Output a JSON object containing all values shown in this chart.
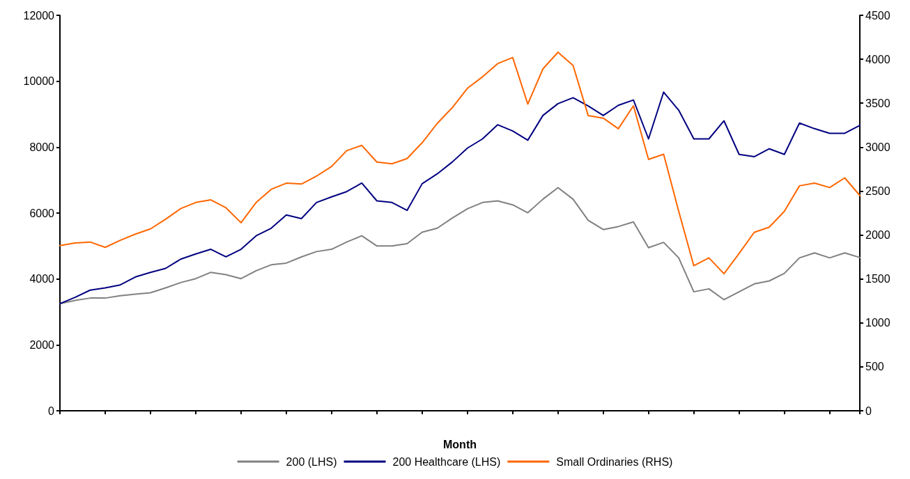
{
  "chart_data": {
    "type": "line",
    "xlabel": "Month",
    "categories": [
      null,
      null,
      null,
      null,
      null,
      null,
      null,
      null,
      null,
      null,
      null,
      null,
      null,
      null,
      null,
      null,
      null,
      null,
      null,
      null,
      null,
      null,
      null,
      null,
      null,
      null,
      null,
      null,
      null,
      null,
      null,
      null,
      null,
      null,
      null,
      null,
      null,
      null,
      null,
      null,
      null,
      null,
      null,
      null,
      null,
      null,
      null,
      null,
      null,
      null,
      null,
      null,
      null,
      null
    ],
    "series": [
      {
        "name": "200 (LHS)",
        "color": "#808080",
        "values": [
          3250,
          3350,
          3420,
          3420,
          3490,
          3540,
          3580,
          3730,
          3890,
          4010,
          4200,
          4130,
          4010,
          4250,
          4430,
          4480,
          4670,
          4830,
          4900,
          5120,
          5310,
          5000,
          5000,
          5070,
          5420,
          5540,
          5850,
          6130,
          6320,
          6370,
          6250,
          6010,
          6420,
          6770,
          6420,
          5780,
          5500,
          5590,
          5730,
          4950,
          5110,
          4640,
          3610,
          3700,
          3370,
          3610,
          3850,
          3940,
          4170,
          4640,
          4790,
          4640,
          4790,
          4650
        ]
      },
      {
        "name": "200 Healthcare (LHS)",
        "color": "#000080",
        "values": [
          3250,
          3440,
          3660,
          3730,
          3820,
          4060,
          4200,
          4320,
          4600,
          4760,
          4900,
          4670,
          4900,
          5310,
          5540,
          5940,
          5830,
          6320,
          6490,
          6650,
          6910,
          6370,
          6320,
          6080,
          6890,
          7190,
          7550,
          7970,
          8250,
          8680,
          8490,
          8210,
          8960,
          9320,
          9500,
          9250,
          8960,
          9270,
          9430,
          8250,
          9670,
          9120,
          8250,
          8250,
          8800,
          7780,
          7710,
          7950,
          7780,
          8730,
          8560,
          8420,
          8420,
          8660
        ]
      },
      {
        "name": "Small Ordinaries (RHS)",
        "color": "#ff6600",
        "axis": "y2",
        "values": [
          1880,
          1910,
          1920,
          1860,
          1940,
          2010,
          2070,
          2180,
          2300,
          2370,
          2400,
          2310,
          2140,
          2370,
          2520,
          2590,
          2580,
          2670,
          2780,
          2960,
          3020,
          2830,
          2810,
          2870,
          3050,
          3270,
          3450,
          3670,
          3800,
          3950,
          4020,
          3490,
          3890,
          4080,
          3930,
          3360,
          3330,
          3210,
          3470,
          2860,
          2920,
          2270,
          1650,
          1740,
          1560,
          1790,
          2030,
          2090,
          2270,
          2560,
          2590,
          2540,
          2650,
          2450
        ]
      }
    ],
    "ylim": [
      0,
      12000
    ],
    "yticks": [
      0,
      2000,
      4000,
      6000,
      8000,
      10000,
      12000
    ],
    "y2lim": [
      0,
      4500
    ],
    "y2ticks": [
      0,
      500,
      1000,
      1500,
      2000,
      2500,
      3000,
      3500,
      4000,
      4500
    ],
    "grid": false,
    "legend": "bottom",
    "marker": "none",
    "line_style": "solid"
  }
}
